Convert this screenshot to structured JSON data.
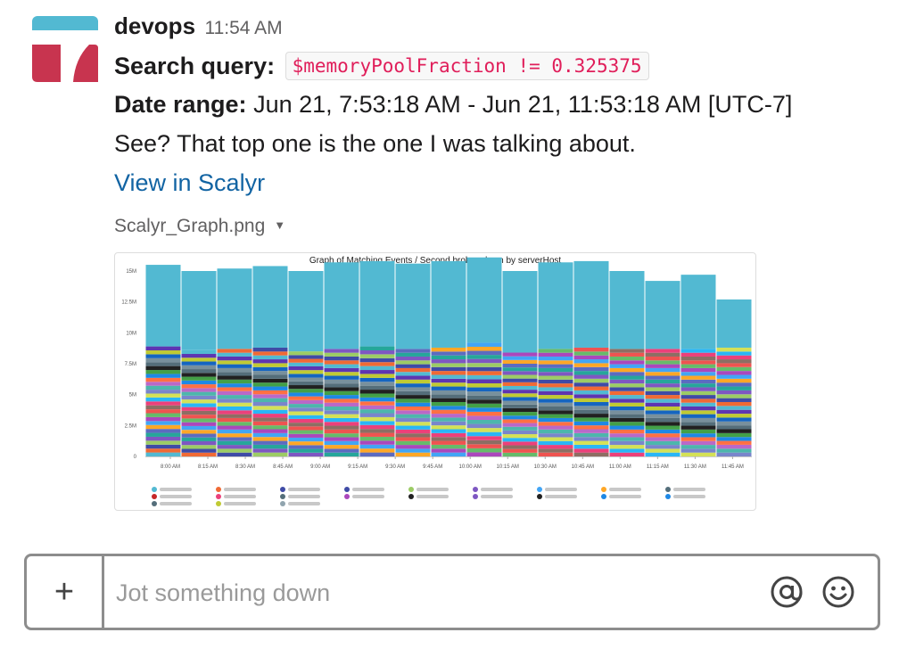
{
  "message": {
    "sender": "devops",
    "time": "11:54 AM",
    "query_label": "Search query:",
    "query_code": "$memoryPoolFraction != 0.325375",
    "range_label": "Date range:",
    "range_value": "Jun 21, 7:53:18 AM - Jun 21, 11:53:18 AM [UTC-7]",
    "text": "See? That top one is the one I was talking about.",
    "link_label": "View in Scalyr"
  },
  "attachment": {
    "filename": "Scalyr_Graph.png",
    "caret": "▼"
  },
  "chart_data": {
    "type": "bar",
    "title": "Graph of Matching Events / Second broken down by serverHost",
    "xlabel": "",
    "ylabel": "",
    "ylim": [
      0,
      15000000
    ],
    "y_ticks": [
      "0",
      "2.5M",
      "5M",
      "7.5M",
      "10M",
      "12.5M",
      "15M"
    ],
    "x_ticks": [
      "8:00 AM",
      "8:15 AM",
      "8:30 AM",
      "8:45 AM",
      "9:00 AM",
      "9:15 AM",
      "9:30 AM",
      "9:45 AM",
      "10:00 AM",
      "10:15 AM",
      "10:30 AM",
      "10:45 AM",
      "11:00 AM",
      "11:15 AM",
      "11:30 AM",
      "11:45 AM"
    ],
    "stacked": true,
    "totals": [
      15500000,
      15000000,
      15200000,
      15400000,
      15000000,
      15700000,
      15800000,
      15600000,
      15800000,
      16100000,
      15000000,
      15700000,
      15800000,
      15000000,
      14200000,
      14700000,
      12700000
    ],
    "base_total": 8700000,
    "base_offsets": [
      200000,
      -100000,
      0,
      100000,
      -200000,
      0,
      200000,
      0,
      100000,
      500000,
      -300000,
      0,
      100000,
      0,
      0,
      0,
      100000
    ],
    "colors": [
      "#52b9d2",
      "#f06a35",
      "#3f4ba6",
      "#9ccc65",
      "#7e57c2",
      "#26a69a",
      "#5c6bc0",
      "#ffa726",
      "#42a5f5",
      "#ab47bc",
      "#66bb6a",
      "#ef5350",
      "#8d6e63",
      "#ec407a",
      "#29b6f6",
      "#d4e157",
      "#7986cb",
      "#4db6ac",
      "#ba68c8",
      "#ff7043",
      "#1e88e5",
      "#43a047",
      "#212121",
      "#546e7a",
      "#78909c",
      "#1565c0",
      "#c0ca33",
      "#5e35b1"
    ],
    "legend_colors": [
      "#52b9d2",
      "#f06a35",
      "#3f4ba6",
      "#3f4ba6",
      "#9ccc65",
      "#7e57c2",
      "#42a5f5",
      "#ffa726",
      "#546e7a",
      "#c62828",
      "#ec407a",
      "#546e7a",
      "#ab47bc",
      "#212121",
      "#7e57c2",
      "#212121",
      "#1e88e5",
      "#1e88e5",
      "#546e7a",
      "#c0ca33",
      "#90a4ae"
    ]
  },
  "composer": {
    "add_label": "+",
    "placeholder": "Jot something down"
  }
}
